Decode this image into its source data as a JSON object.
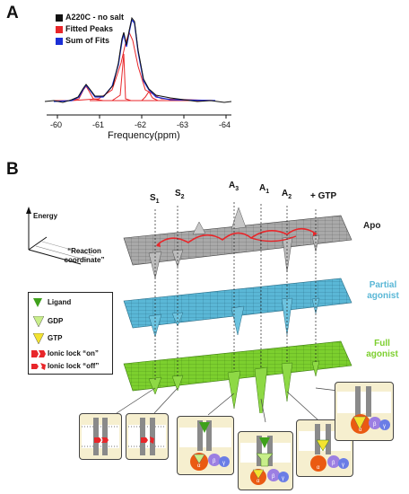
{
  "panel_a": {
    "letter": "A",
    "legend": [
      {
        "label": "A220C - no salt",
        "color": "#111111"
      },
      {
        "label": "Fitted Peaks",
        "color": "#e8262a"
      },
      {
        "label": "Sum of Fits",
        "color": "#1b2fd6"
      }
    ],
    "x_ticks": [
      "-60",
      "-61",
      "-62",
      "-63",
      "-64"
    ],
    "x_label": "Frequency(ppm)"
  },
  "panel_b": {
    "letter": "B",
    "axes": {
      "energy": "Energy",
      "reaction": "“Reaction coordinate”"
    },
    "sites": [
      {
        "main": "S",
        "sub": "1"
      },
      {
        "main": "S",
        "sub": "2"
      },
      {
        "main": "A",
        "sub": "3"
      },
      {
        "main": "A",
        "sub": "1"
      },
      {
        "main": "A",
        "sub": "2"
      },
      {
        "main": "+ GTP",
        "sub": ""
      }
    ],
    "states": {
      "apo": "Apo",
      "partial": "Partial agonist",
      "full": "Full agonist"
    },
    "state_colors": {
      "apo": "#a9a9a9",
      "partial": "#5ab7d6",
      "full": "#7ccf2e"
    },
    "legend": [
      {
        "label": "Ligand",
        "icon": "ligand-icon"
      },
      {
        "label": "GDP",
        "icon": "gdp-icon"
      },
      {
        "label": "GTP",
        "icon": "gtp-icon"
      },
      {
        "label": "Ionic lock “on”",
        "icon": "ionic-lock-on-icon"
      },
      {
        "label": "Ionic lock “off”",
        "icon": "ionic-lock-off-icon"
      }
    ],
    "g_protein_labels": {
      "alpha": "α",
      "beta": "β",
      "gamma": "γ"
    }
  }
}
